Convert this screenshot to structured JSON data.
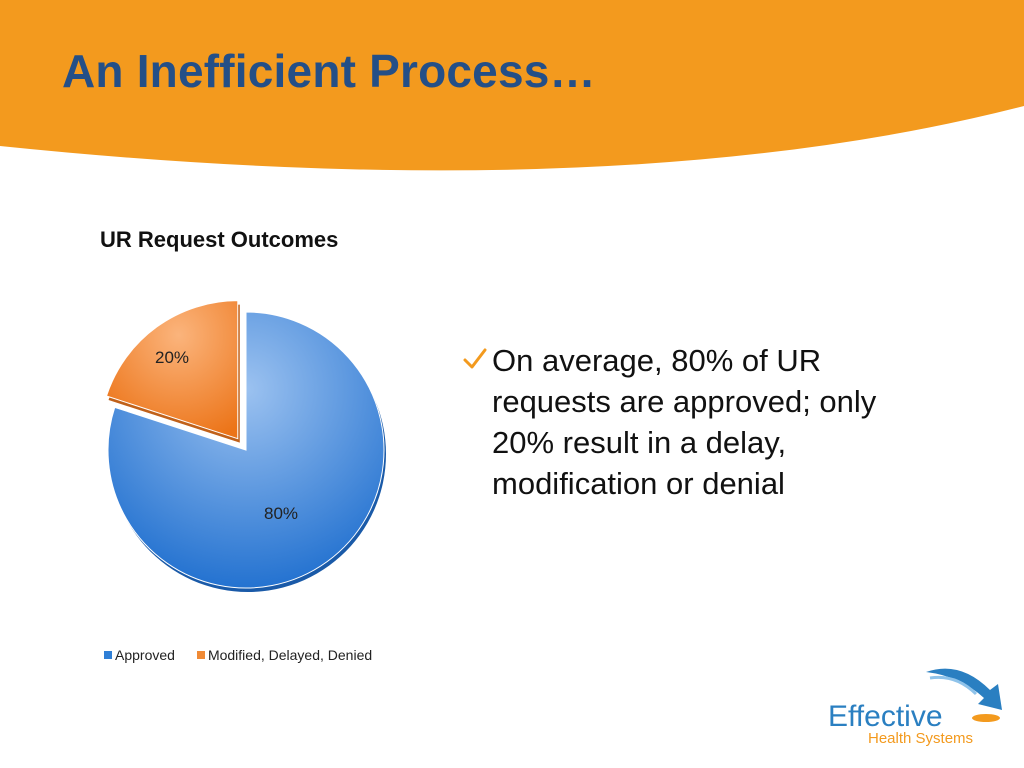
{
  "slide": {
    "title": "An Inefficient Process…",
    "bullet": "On average, 80% of UR requests are approved; only 20% result in a delay, modification or denial"
  },
  "colors": {
    "banner": "#f39a1e",
    "title": "#244f87",
    "approved": "#2f7fd6",
    "modified": "#f08a35",
    "check": "#f39a1e",
    "logo_blue": "#2a7fc1",
    "logo_orange": "#f39a1e"
  },
  "chart_data": {
    "type": "pie",
    "title": "UR Request Outcomes",
    "categories": [
      "Approved",
      "Modified, Delayed, Denied"
    ],
    "values": [
      80,
      20
    ],
    "data_labels": [
      "80%",
      "20%"
    ],
    "exploded": [
      false,
      true
    ],
    "legend": {
      "position": "bottom",
      "entries": [
        "Approved",
        "Modified, Delayed, Denied"
      ]
    }
  },
  "logo": {
    "word": "Effective",
    "sub": "Health Systems",
    "icon": "arrow-swoosh-icon"
  }
}
